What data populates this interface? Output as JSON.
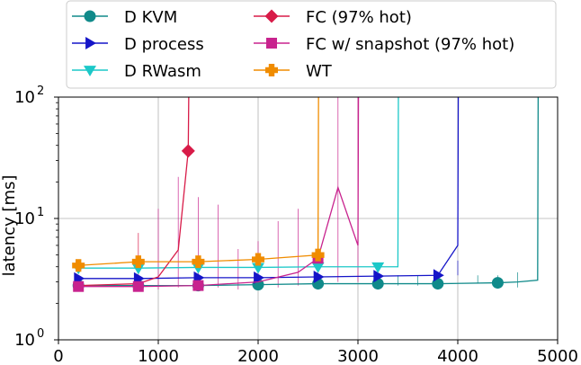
{
  "chart_data": {
    "type": "line",
    "title": "",
    "xlabel": "",
    "ylabel": "latency [ms]",
    "xlim": [
      0,
      5000
    ],
    "ylim": [
      1,
      100
    ],
    "yscale": "log",
    "grid": true,
    "legend_position": "top-center",
    "x_ticks": [
      0,
      1000,
      2000,
      3000,
      4000,
      5000
    ],
    "x_tick_labels": [
      "0",
      "1000",
      "2000",
      "3000",
      "4000",
      "5000"
    ],
    "y_ticks": [
      1,
      10,
      100
    ],
    "y_tick_labels": [
      {
        "base": "10",
        "exp": "0"
      },
      {
        "base": "10",
        "exp": "1"
      },
      {
        "base": "10",
        "exp": "2"
      }
    ],
    "series": [
      {
        "name": "D KVM",
        "color": "#108a8a",
        "marker": "circle",
        "x": [
          200,
          800,
          1400,
          2000,
          2600,
          3200,
          3800,
          4400,
          4600,
          4800,
          4805
        ],
        "y": [
          2.8,
          2.8,
          2.8,
          2.85,
          2.9,
          2.9,
          2.9,
          2.95,
          3.0,
          3.1,
          100
        ],
        "marker_x": [
          200,
          800,
          1400,
          2000,
          2600,
          3200,
          3800,
          4400
        ]
      },
      {
        "name": "D process",
        "color": "#1515c8",
        "marker": "triangle-right",
        "x": [
          200,
          800,
          1400,
          2000,
          2600,
          3200,
          3800,
          4000,
          4005
        ],
        "y": [
          3.2,
          3.2,
          3.25,
          3.25,
          3.3,
          3.35,
          3.4,
          6.0,
          100
        ],
        "marker_x": [
          200,
          800,
          1400,
          2000,
          2600,
          3200,
          3800
        ]
      },
      {
        "name": "D RWasm",
        "color": "#1cc8c8",
        "marker": "triangle-down",
        "x": [
          200,
          800,
          1400,
          2000,
          2600,
          3200,
          3400,
          3405
        ],
        "y": [
          3.9,
          3.9,
          3.95,
          3.95,
          4.0,
          4.0,
          4.0,
          100
        ],
        "marker_x": [
          200,
          800,
          1400,
          2000,
          2600,
          3200
        ]
      },
      {
        "name": "FC (97% hot)",
        "color": "#d81b48",
        "marker": "diamond",
        "x": [
          200,
          800,
          1000,
          1200,
          1300,
          1305
        ],
        "y": [
          2.8,
          2.9,
          3.3,
          5.5,
          36,
          100
        ],
        "marker_x": [
          1300
        ]
      },
      {
        "name": "FC w/ snapshot (97% hot)",
        "color": "#c8238e",
        "marker": "square",
        "x": [
          200,
          800,
          1400,
          2000,
          2400,
          2600,
          2800,
          3000,
          3005
        ],
        "y": [
          2.75,
          2.75,
          2.8,
          3.0,
          3.6,
          4.7,
          18,
          6.0,
          100
        ],
        "marker_x": [
          200,
          800,
          1400,
          2600
        ]
      },
      {
        "name": "WT",
        "color": "#f08c00",
        "marker": "plus",
        "x": [
          200,
          800,
          1400,
          2000,
          2600,
          2605
        ],
        "y": [
          4.1,
          4.4,
          4.4,
          4.6,
          5.0,
          100
        ],
        "marker_x": [
          200,
          800,
          1400,
          2000,
          2600
        ]
      }
    ]
  }
}
